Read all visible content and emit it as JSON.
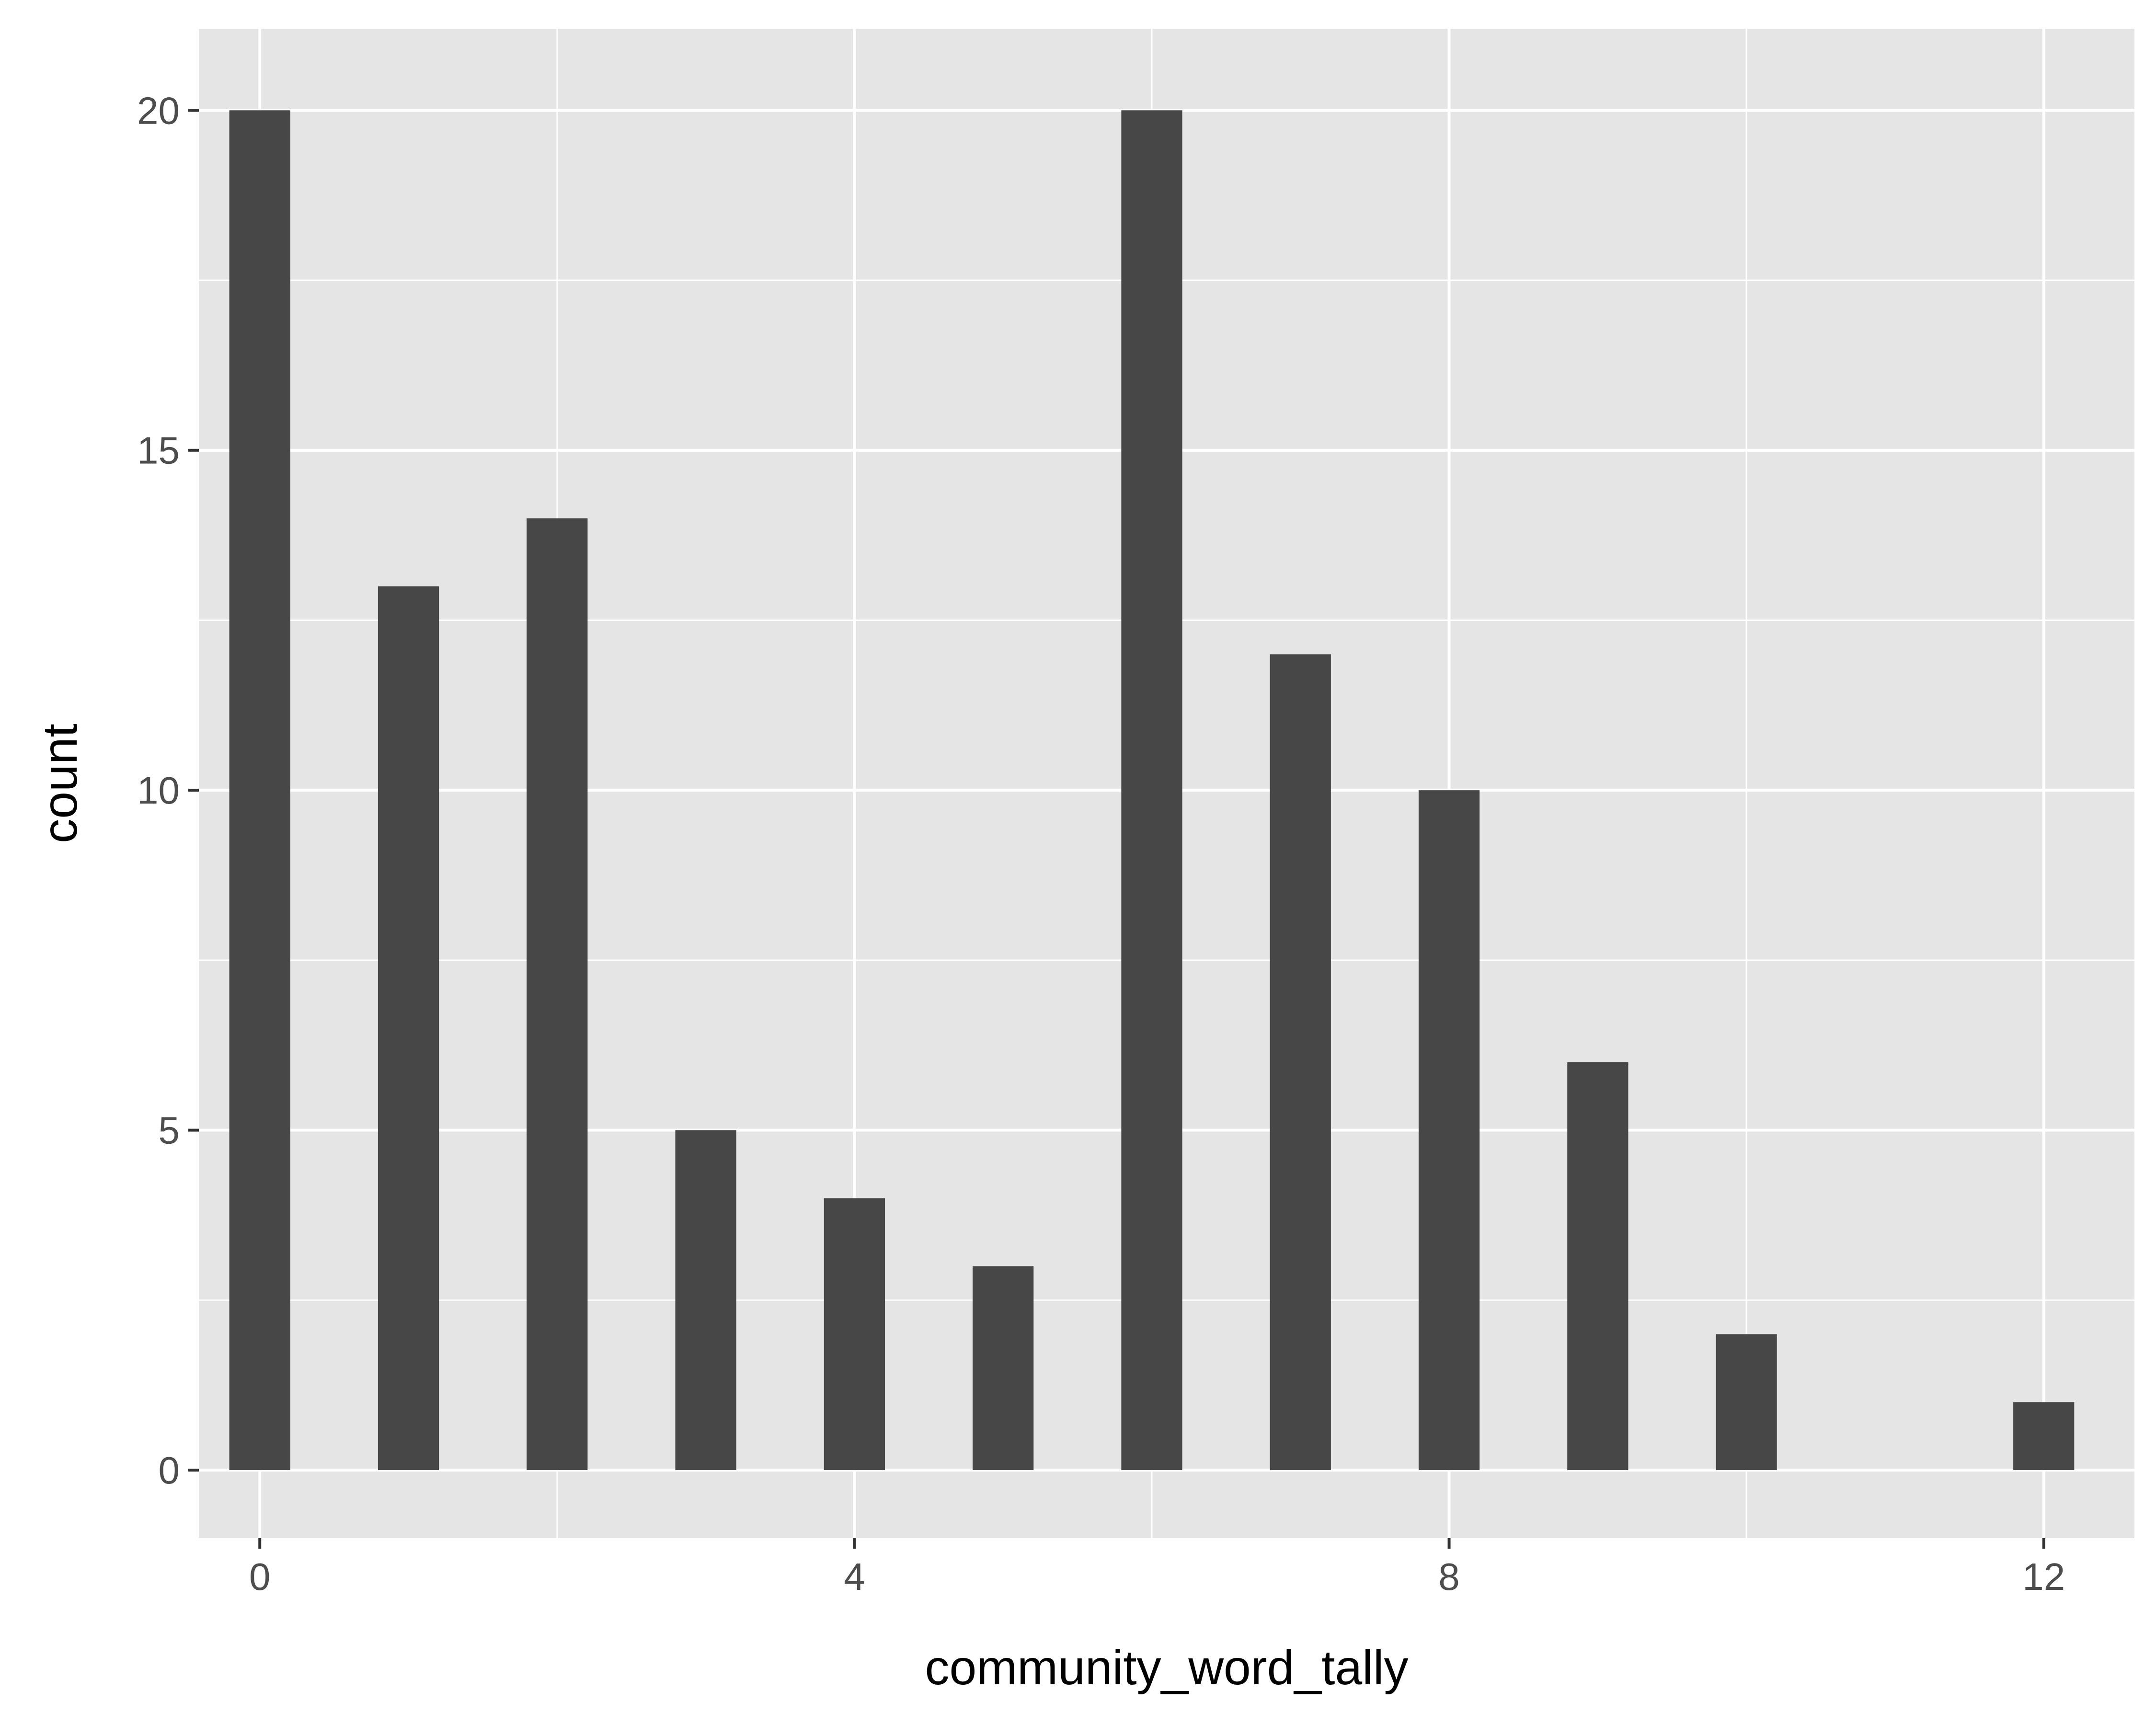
{
  "chart_data": {
    "type": "bar",
    "xlabel": "community_word_tally",
    "ylabel": "count",
    "x": [
      0,
      1,
      2,
      3,
      4,
      5,
      6,
      7,
      8,
      9,
      10,
      12
    ],
    "values": [
      20,
      13,
      14,
      5,
      4,
      3,
      20,
      12,
      10,
      6,
      2,
      1
    ],
    "xlim": [
      -0.41,
      12.61
    ],
    "ylim": [
      -1,
      21.2
    ],
    "x_ticks": [
      0,
      4,
      8,
      12
    ],
    "x_tick_labels": [
      "0",
      "4",
      "8",
      "12"
    ],
    "y_ticks": [
      0,
      5,
      10,
      15,
      20
    ],
    "y_tick_labels": [
      "0",
      "5",
      "10",
      "15",
      "20"
    ],
    "bar_width": 0.41,
    "grid": true,
    "legend": "none",
    "colors": {
      "panel": "#e5e5e5",
      "grid": "#ffffff",
      "bar": "#474747",
      "axis_text": "#4d4d4d",
      "axis_title": "#000000"
    }
  }
}
